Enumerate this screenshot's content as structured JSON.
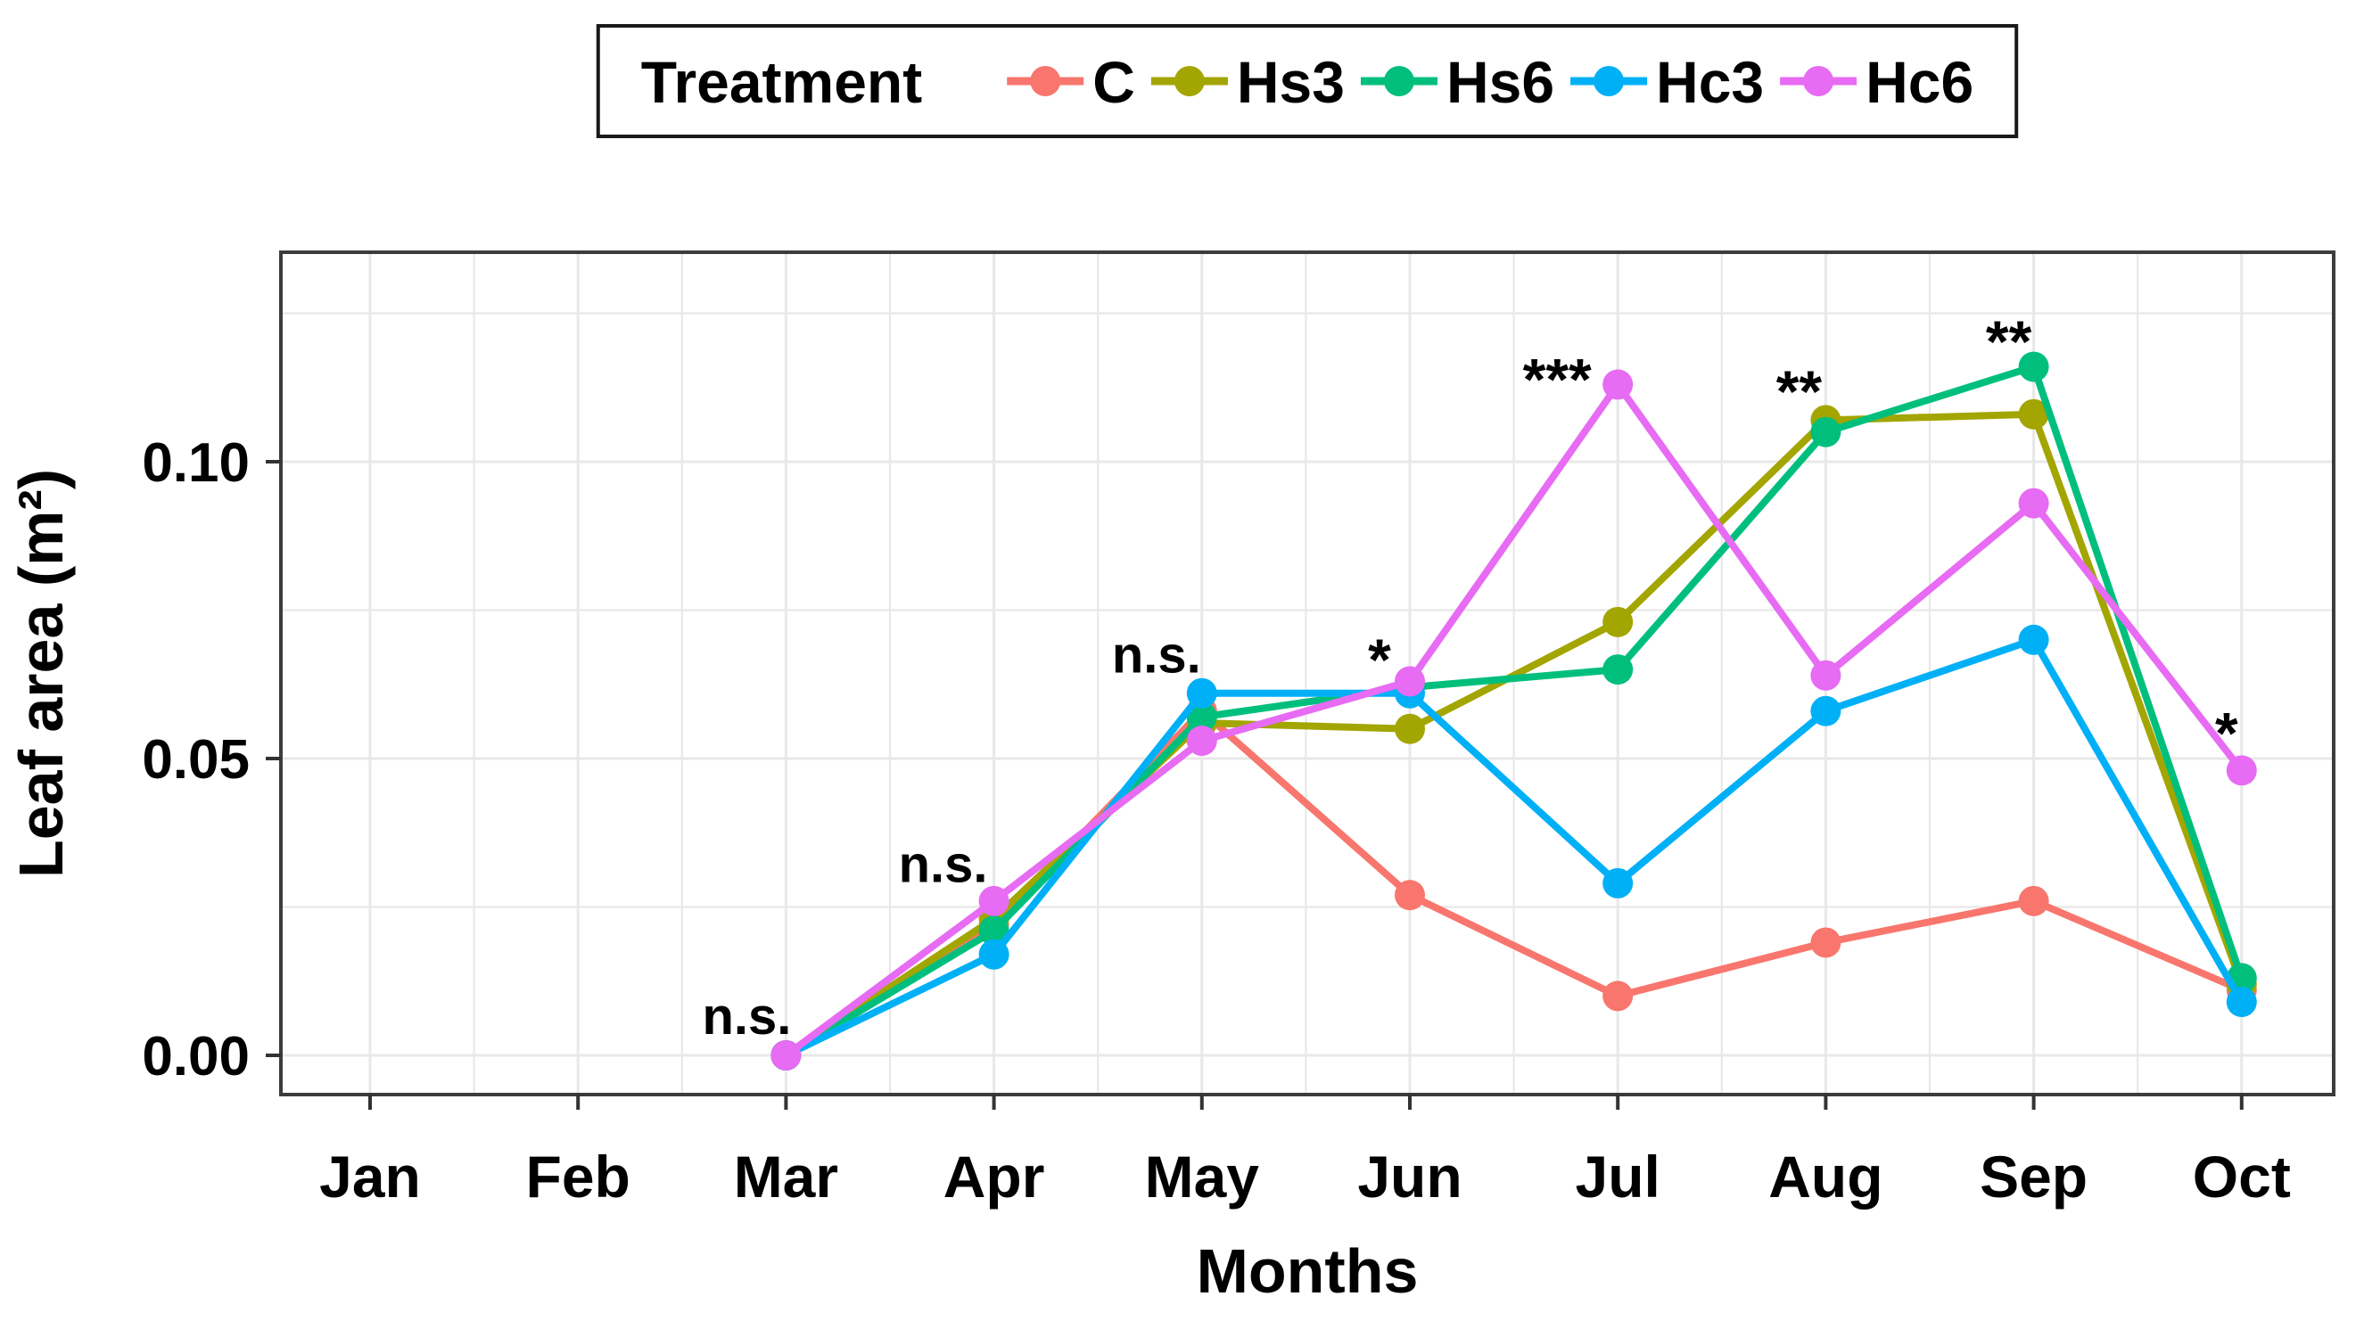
{
  "chart_data": {
    "type": "line",
    "title": "",
    "legend_title": "Treatment",
    "legend_position": "top-center-boxed",
    "xlabel": "Months",
    "ylabel": "Leaf area (m²)",
    "categories": [
      "Jan",
      "Feb",
      "Mar",
      "Apr",
      "May",
      "Jun",
      "Jul",
      "Aug",
      "Sep",
      "Oct"
    ],
    "y_ticks": [
      {
        "v": 0.0,
        "label": "0.00"
      },
      {
        "v": 0.05,
        "label": "0.05"
      },
      {
        "v": 0.1,
        "label": "0.10"
      }
    ],
    "ylim": [
      -0.0066,
      0.1353
    ],
    "grid": {
      "major": true,
      "minor": true,
      "color": "#e8e8e8",
      "background": "#ffffff",
      "panel_border": "#3c3c3c"
    },
    "series": [
      {
        "name": "C",
        "color": "#F8766D",
        "values": [
          null,
          null,
          0.0,
          0.022,
          0.058,
          0.027,
          0.01,
          0.019,
          0.026,
          0.011
        ]
      },
      {
        "name": "Hs3",
        "color": "#A3A500",
        "values": [
          null,
          null,
          0.0,
          0.023,
          0.056,
          0.055,
          0.073,
          0.107,
          0.108,
          0.012
        ]
      },
      {
        "name": "Hs6",
        "color": "#00BF7D",
        "values": [
          null,
          null,
          0.0,
          0.021,
          0.057,
          0.062,
          0.065,
          0.105,
          0.116,
          0.013
        ]
      },
      {
        "name": "Hc3",
        "color": "#00B0F6",
        "values": [
          null,
          null,
          0.0,
          0.017,
          0.061,
          0.061,
          0.029,
          0.058,
          0.07,
          0.009
        ]
      },
      {
        "name": "Hc6",
        "color": "#E76BF3",
        "values": [
          null,
          null,
          0.0,
          0.026,
          0.053,
          0.063,
          0.113,
          0.064,
          0.093,
          0.048
        ]
      }
    ],
    "annotations": [
      {
        "month": "Mar",
        "text": "n.s.",
        "dx": -44,
        "v": 0.0062
      },
      {
        "month": "Apr",
        "text": "n.s.",
        "dx": -57,
        "v": 0.0318
      },
      {
        "month": "May",
        "text": "n.s.",
        "dx": -51,
        "v": 0.0671
      },
      {
        "month": "Jun",
        "text": "*",
        "dx": -34,
        "v": 0.0674
      },
      {
        "month": "Jul",
        "text": "***",
        "dx": -68,
        "v": 0.1146
      },
      {
        "month": "Aug",
        "text": "**",
        "dx": -30,
        "v": 0.1126
      },
      {
        "month": "Sep",
        "text": "**",
        "dx": -28,
        "v": 0.121
      },
      {
        "month": "Oct",
        "text": "*",
        "dx": -17,
        "v": 0.055
      }
    ]
  }
}
